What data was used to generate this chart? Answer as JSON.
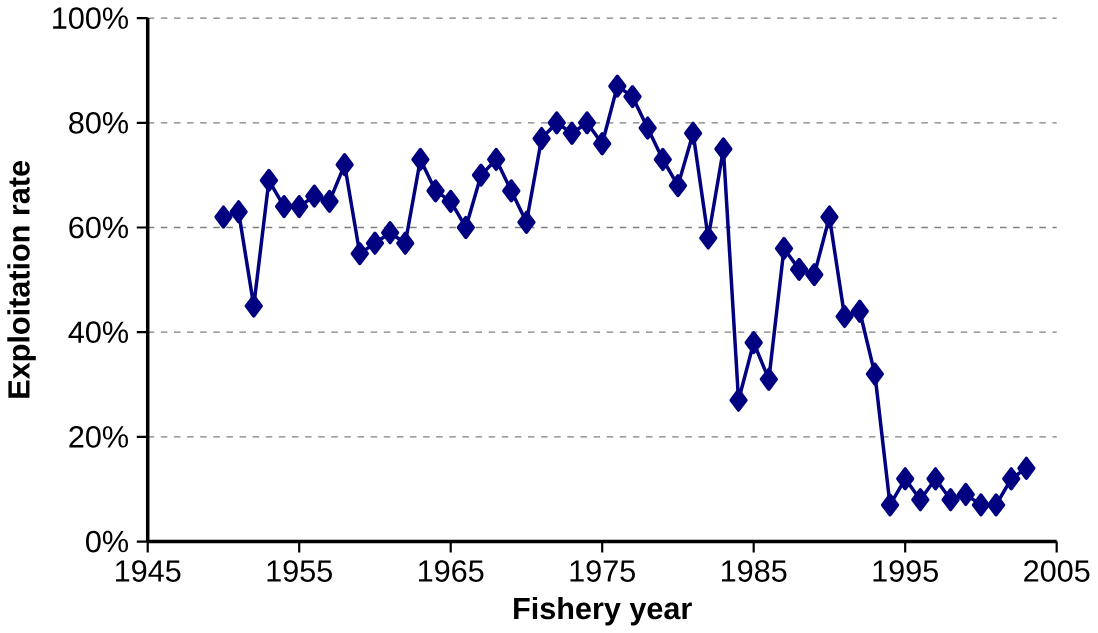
{
  "chart_data": {
    "type": "line",
    "xlabel": "Fishery year",
    "ylabel": "Exploitation rate",
    "x": [
      1950,
      1951,
      1952,
      1953,
      1954,
      1955,
      1956,
      1957,
      1958,
      1959,
      1960,
      1961,
      1962,
      1963,
      1964,
      1965,
      1966,
      1967,
      1968,
      1969,
      1970,
      1971,
      1972,
      1973,
      1974,
      1975,
      1976,
      1977,
      1978,
      1979,
      1980,
      1981,
      1982,
      1983,
      1984,
      1985,
      1986,
      1987,
      1988,
      1989,
      1990,
      1991,
      1992,
      1993,
      1994,
      1995,
      1996,
      1997,
      1998,
      1999,
      2000,
      2001,
      2002,
      2003
    ],
    "series": [
      {
        "color": "#000080",
        "values": [
          62,
          63,
          45,
          69,
          64,
          64,
          66,
          65,
          72,
          55,
          57,
          59,
          57,
          73,
          67,
          65,
          60,
          70,
          73,
          67,
          61,
          77,
          80,
          78,
          80,
          76,
          87,
          85,
          79,
          73,
          68,
          78,
          58,
          75,
          27,
          38,
          31,
          56,
          52,
          51,
          62,
          43,
          44,
          32,
          7,
          12,
          8,
          12,
          8,
          9,
          7,
          7,
          12,
          14
        ]
      }
    ],
    "xlim": [
      1945,
      2005
    ],
    "xticks": [
      1945,
      1955,
      1965,
      1975,
      1985,
      1995,
      2005
    ],
    "ylim": [
      0,
      100
    ],
    "yticks": [
      {
        "value": 0,
        "label": "0%"
      },
      {
        "value": 20,
        "label": "20%"
      },
      {
        "value": 40,
        "label": "40%"
      },
      {
        "value": 60,
        "label": "60%"
      },
      {
        "value": 80,
        "label": "80%"
      },
      {
        "value": 100,
        "label": "100%"
      }
    ],
    "grid": "y",
    "marker": "diamond",
    "line_style": "solid"
  }
}
